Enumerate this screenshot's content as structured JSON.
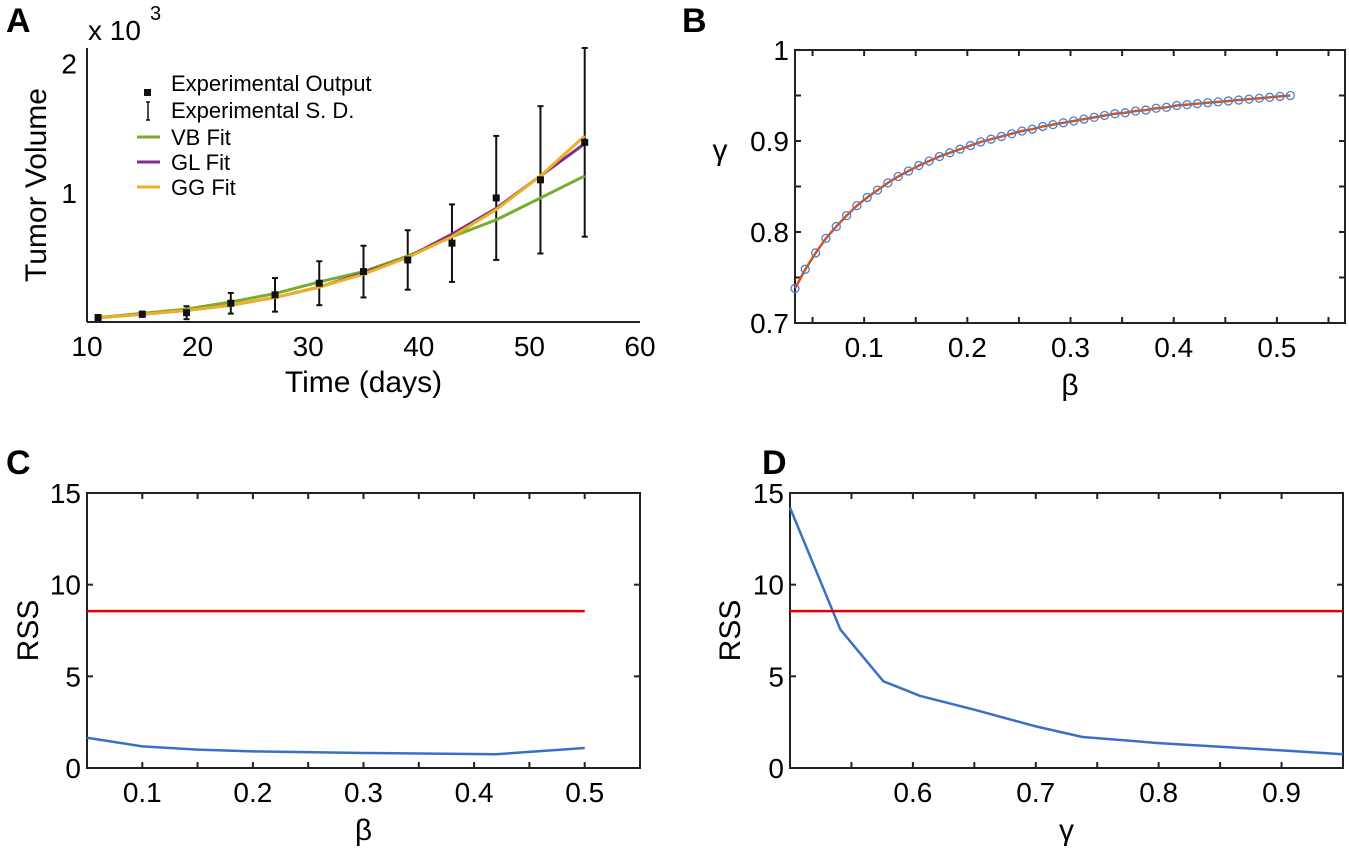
{
  "chart_data": [
    {
      "panel": "A",
      "type": "line",
      "xlabel": "Time (days)",
      "ylabel": "Tumor Volume",
      "yscale_note": "x 10",
      "yscale_exp": "3",
      "xlim": [
        10,
        60
      ],
      "ylim": [
        0,
        2.12
      ],
      "xticks": [
        10,
        20,
        30,
        40,
        50,
        60
      ],
      "yticks": [
        1,
        2
      ],
      "legend_position": "top-left",
      "legend": [
        "Experimental Output",
        "Experimental S. D.",
        "VB Fit",
        "GL Fit",
        "GG Fit"
      ],
      "x": [
        11,
        15,
        19,
        23,
        27,
        31,
        35,
        39,
        43,
        47,
        51,
        55
      ],
      "experimental_mean": [
        0.034,
        0.06,
        0.072,
        0.145,
        0.21,
        0.3,
        0.39,
        0.48,
        0.61,
        0.96,
        1.1,
        1.39
      ],
      "experimental_sd": [
        0.02,
        0.02,
        0.05,
        0.08,
        0.13,
        0.17,
        0.2,
        0.23,
        0.3,
        0.48,
        0.57,
        0.73
      ],
      "series": [
        {
          "name": "VB Fit",
          "color": "#77ac30",
          "values": [
            0.034,
            0.067,
            0.1,
            0.155,
            0.22,
            0.31,
            0.39,
            0.51,
            0.66,
            0.79,
            0.96,
            1.13
          ]
        },
        {
          "name": "GL Fit",
          "color": "#7e2f8e",
          "values": [
            0.034,
            0.06,
            0.09,
            0.13,
            0.19,
            0.27,
            0.38,
            0.5,
            0.68,
            0.88,
            1.13,
            1.38
          ]
        },
        {
          "name": "GG Fit",
          "color": "#edb120",
          "values": [
            0.034,
            0.06,
            0.09,
            0.13,
            0.19,
            0.27,
            0.37,
            0.5,
            0.66,
            0.87,
            1.13,
            1.44
          ]
        }
      ]
    },
    {
      "panel": "B",
      "type": "scatter",
      "xlabel": "β",
      "ylabel": "γ",
      "xlim": [
        0.033,
        0.566
      ],
      "ylim": [
        0.7,
        1.0
      ],
      "xticks": [
        0.1,
        0.2,
        0.3,
        0.4,
        0.5
      ],
      "xticklabels": [
        "0.1",
        "0.2",
        "0.3",
        "0.4",
        "0.5"
      ],
      "yticks": [
        0.7,
        0.8,
        0.9,
        1.0
      ],
      "yticklabels": [
        "0.7",
        "0.8",
        "0.9",
        "1"
      ],
      "marker_color": "#4a7fd0",
      "line_color": "#d95319",
      "x": [
        0.033,
        0.043,
        0.053,
        0.063,
        0.073,
        0.083,
        0.093,
        0.103,
        0.113,
        0.123,
        0.133,
        0.143,
        0.153,
        0.163,
        0.173,
        0.183,
        0.193,
        0.203,
        0.213,
        0.223,
        0.233,
        0.243,
        0.253,
        0.263,
        0.273,
        0.283,
        0.293,
        0.303,
        0.313,
        0.323,
        0.333,
        0.343,
        0.353,
        0.363,
        0.373,
        0.383,
        0.393,
        0.403,
        0.413,
        0.423,
        0.433,
        0.443,
        0.453,
        0.463,
        0.473,
        0.483,
        0.493,
        0.503,
        0.513
      ],
      "y": [
        0.738,
        0.759,
        0.777,
        0.793,
        0.806,
        0.818,
        0.829,
        0.838,
        0.846,
        0.854,
        0.861,
        0.867,
        0.873,
        0.878,
        0.883,
        0.887,
        0.891,
        0.895,
        0.899,
        0.902,
        0.905,
        0.908,
        0.911,
        0.913,
        0.916,
        0.918,
        0.92,
        0.922,
        0.924,
        0.926,
        0.928,
        0.93,
        0.931,
        0.933,
        0.934,
        0.936,
        0.937,
        0.939,
        0.94,
        0.941,
        0.942,
        0.943,
        0.944,
        0.945,
        0.946,
        0.947,
        0.948,
        0.949,
        0.95
      ]
    },
    {
      "panel": "C",
      "type": "line",
      "xlabel": "β",
      "ylabel": "RSS",
      "xlim": [
        0.05,
        0.55
      ],
      "ylim": [
        0,
        15
      ],
      "xticks": [
        0.1,
        0.2,
        0.3,
        0.4,
        0.5
      ],
      "xticklabels": [
        "0.1",
        "0.2",
        "0.3",
        "0.4",
        "0.5"
      ],
      "yticks": [
        0,
        5,
        10,
        15
      ],
      "yticklabels": [
        "0",
        "5",
        "10",
        "15"
      ],
      "series": [
        {
          "name": "RSS",
          "color": "#3a6fc9",
          "x": [
            0.05,
            0.1,
            0.15,
            0.2,
            0.3,
            0.42,
            0.5
          ],
          "values": [
            1.65,
            1.18,
            1.0,
            0.91,
            0.82,
            0.75,
            1.09
          ]
        },
        {
          "name": "threshold",
          "color": "#e00000",
          "x": [
            0.05,
            0.5
          ],
          "values": [
            8.56,
            8.56
          ]
        }
      ]
    },
    {
      "panel": "D",
      "type": "line",
      "xlabel": "γ",
      "ylabel": "RSS",
      "xlim": [
        0.5,
        0.95
      ],
      "ylim": [
        0,
        15
      ],
      "xticks": [
        0.6,
        0.7,
        0.8,
        0.9
      ],
      "xticklabels": [
        "0.6",
        "0.7",
        "0.8",
        "0.9"
      ],
      "yticks": [
        0,
        5,
        10,
        15
      ],
      "yticklabels": [
        "0",
        "5",
        "10",
        "15"
      ],
      "series": [
        {
          "name": "RSS",
          "color": "#3a6fc9",
          "x": [
            0.5,
            0.541,
            0.576,
            0.606,
            0.65,
            0.7,
            0.738,
            0.8,
            0.9,
            0.95
          ],
          "values": [
            14.2,
            7.55,
            4.73,
            3.93,
            3.18,
            2.27,
            1.69,
            1.36,
            0.96,
            0.75
          ]
        },
        {
          "name": "threshold",
          "color": "#e00000",
          "x": [
            0.5,
            0.95
          ],
          "values": [
            8.56,
            8.56
          ]
        }
      ]
    }
  ],
  "panel_labels": [
    "A",
    "B",
    "C",
    "D"
  ]
}
